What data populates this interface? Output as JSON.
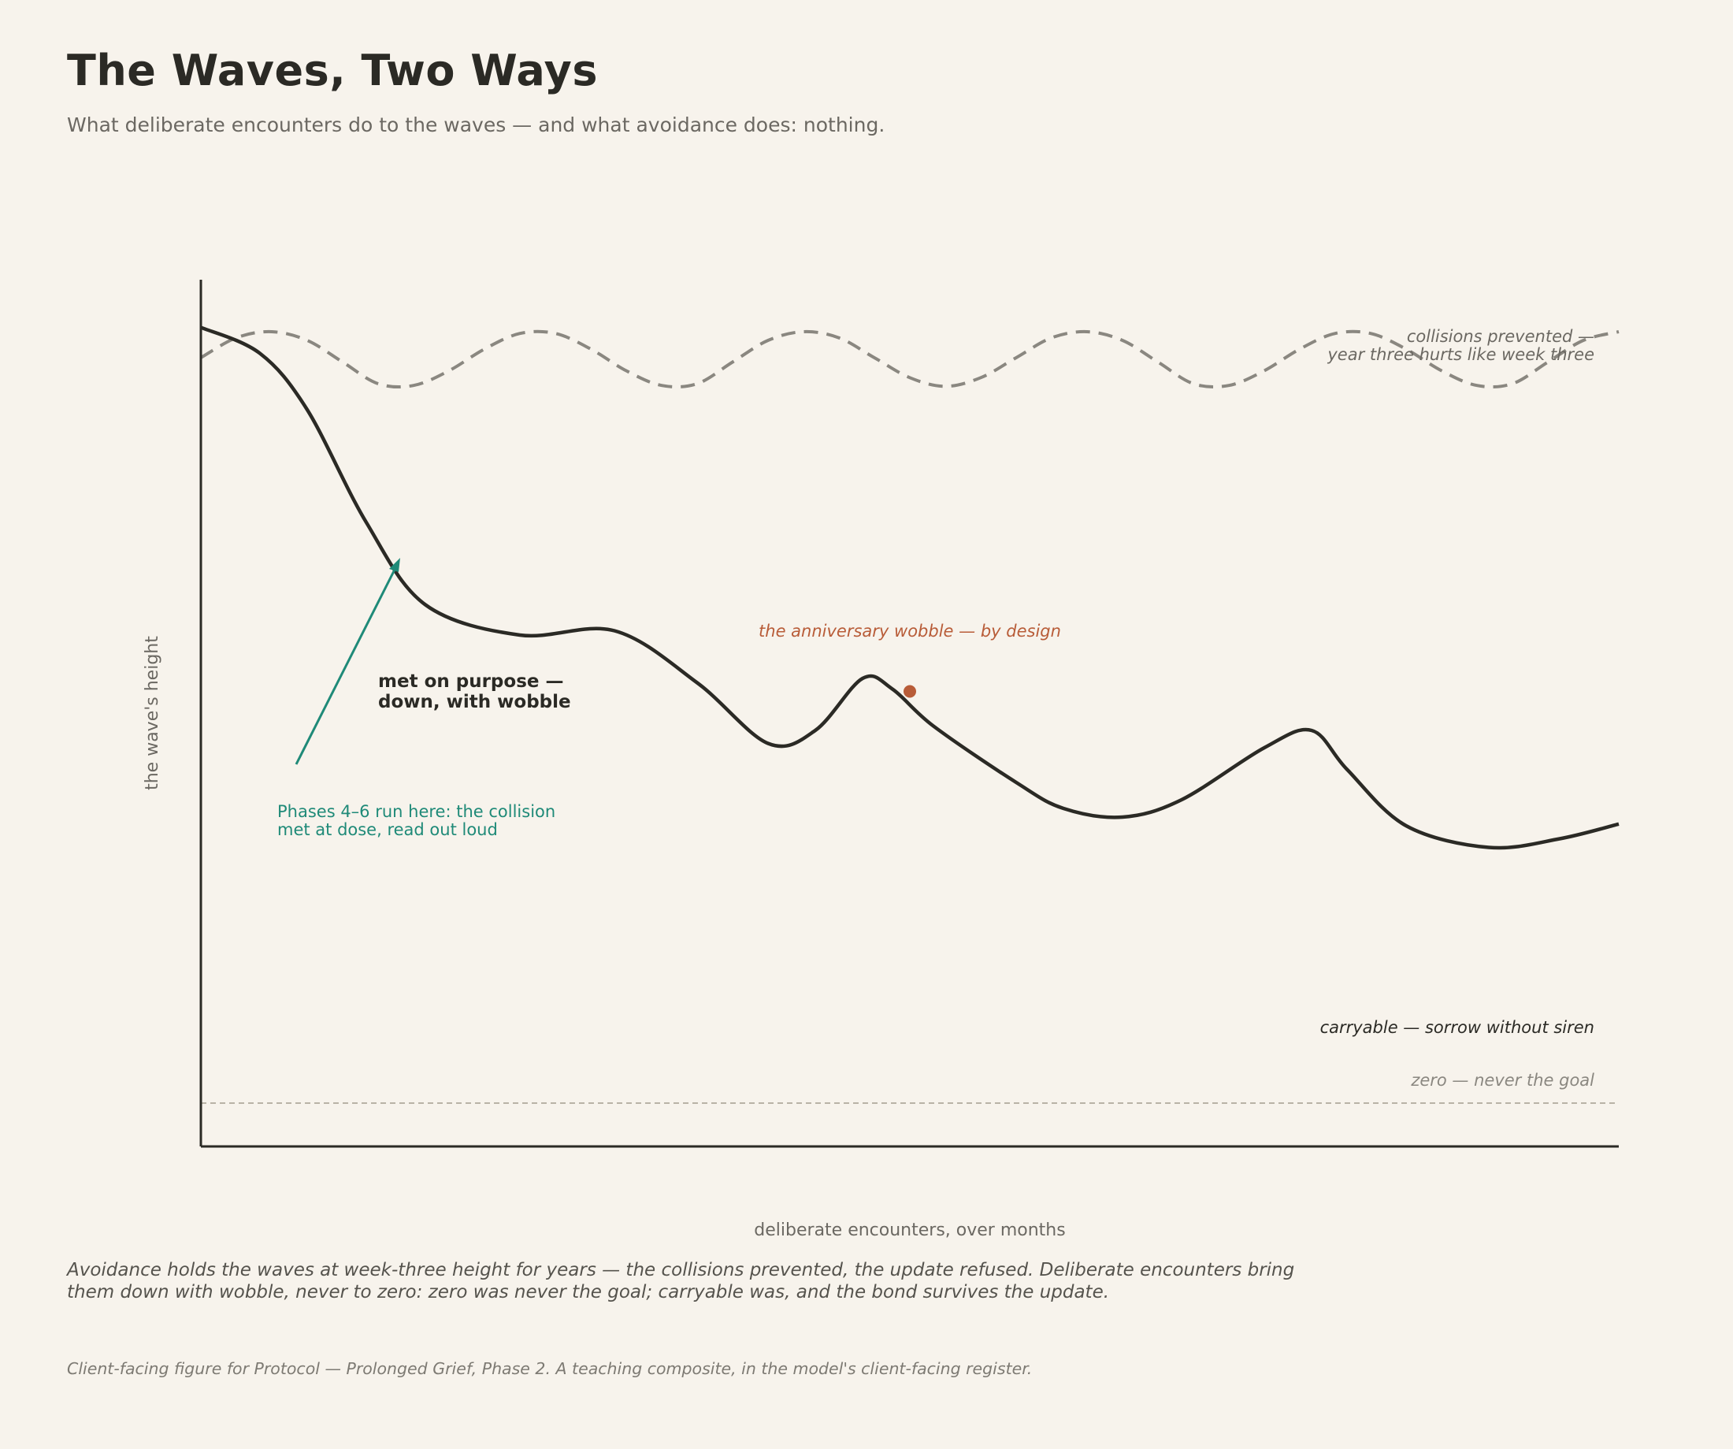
{
  "header": {
    "title": "The Waves, Two Ways",
    "subtitle": "What deliberate encounters do to the waves — and what avoidance does: nothing."
  },
  "footer": {
    "caption": "Avoidance holds the waves at week-three height for years — the collisions prevented, the update refused. Deliberate encounters bring them down with wobble, never to zero: zero was never the goal; carryable was, and the bond survives the update.",
    "footnote": "Client-facing figure for Protocol — Prolonged Grief, Phase 2. A teaching composite, in the model's client-facing register."
  },
  "colors": {
    "background": "#f7f3ec",
    "ink": "#2b2a25",
    "muted": "#6b6862",
    "dashed": "#8a8780",
    "accent_teal": "#1f8a78",
    "accent_rust": "#b85c38",
    "baseline": "#b9b3a6"
  },
  "chart_data": {
    "type": "line",
    "title": "The Waves, Two Ways",
    "xlabel": "deliberate encounters, over months",
    "ylabel": "the wave's height",
    "xlim": [
      0,
      12
    ],
    "ylim": [
      0,
      10
    ],
    "grid": false,
    "legend": "none",
    "series": [
      {
        "style": "dashed",
        "points": [
          [
            0,
            9.1
          ],
          [
            0.3,
            9.33
          ],
          [
            0.6,
            9.4
          ],
          [
            0.9,
            9.3
          ],
          [
            1.2,
            9.05
          ],
          [
            1.5,
            8.8
          ],
          [
            1.8,
            8.78
          ],
          [
            2.1,
            8.95
          ],
          [
            2.4,
            9.2
          ],
          [
            2.7,
            9.38
          ],
          [
            3.0,
            9.38
          ],
          [
            3.3,
            9.2
          ],
          [
            3.6,
            8.95
          ],
          [
            3.9,
            8.78
          ],
          [
            4.2,
            8.8
          ],
          [
            4.5,
            9.05
          ],
          [
            4.8,
            9.3
          ],
          [
            5.1,
            9.4
          ],
          [
            5.4,
            9.33
          ],
          [
            5.7,
            9.1
          ],
          [
            6.0,
            8.87
          ],
          [
            6.3,
            8.77
          ],
          [
            6.6,
            8.87
          ],
          [
            6.9,
            9.1
          ],
          [
            7.2,
            9.33
          ],
          [
            7.5,
            9.4
          ],
          [
            7.8,
            9.3
          ],
          [
            8.1,
            9.05
          ],
          [
            8.4,
            8.8
          ],
          [
            8.7,
            8.78
          ],
          [
            9.0,
            8.95
          ],
          [
            9.3,
            9.2
          ],
          [
            9.6,
            9.38
          ],
          [
            9.9,
            9.38
          ],
          [
            10.2,
            9.2
          ],
          [
            10.5,
            8.95
          ],
          [
            10.8,
            8.78
          ],
          [
            11.1,
            8.8
          ],
          [
            11.4,
            9.05
          ],
          [
            11.7,
            9.3
          ],
          [
            12.0,
            9.4
          ]
        ]
      },
      {
        "style": "solid",
        "points": [
          [
            0,
            9.45
          ],
          [
            0.5,
            9.15
          ],
          [
            0.9,
            8.5
          ],
          [
            1.4,
            7.2
          ],
          [
            1.9,
            6.25
          ],
          [
            2.7,
            5.9
          ],
          [
            3.5,
            5.95
          ],
          [
            4.2,
            5.35
          ],
          [
            4.8,
            4.65
          ],
          [
            5.2,
            4.8
          ],
          [
            5.6,
            5.4
          ],
          [
            5.85,
            5.28
          ],
          [
            6.2,
            4.85
          ],
          [
            6.9,
            4.2
          ],
          [
            7.3,
            3.9
          ],
          [
            7.8,
            3.8
          ],
          [
            8.3,
            4.0
          ],
          [
            9.0,
            4.6
          ],
          [
            9.4,
            4.8
          ],
          [
            9.7,
            4.35
          ],
          [
            10.2,
            3.7
          ],
          [
            10.9,
            3.45
          ],
          [
            11.5,
            3.55
          ],
          [
            12.0,
            3.72
          ]
        ]
      }
    ],
    "highlight_point": {
      "x": 6.0,
      "y": 5.25
    },
    "zero_line": 0.5,
    "annotations": {
      "avoidance_label_1": "collisions prevented —",
      "avoidance_label_2": "year three hurts like week three",
      "deliberate_label_1": "met on purpose —",
      "deliberate_label_2": "down, with wobble",
      "phases_label_1": "Phases 4–6 run here: the collision",
      "phases_label_2": "met at dose, read out loud",
      "wobble_label": "the anniversary wobble — by design",
      "carryable_label": "carryable — sorrow without siren",
      "zero_label": "zero — never the goal"
    }
  }
}
